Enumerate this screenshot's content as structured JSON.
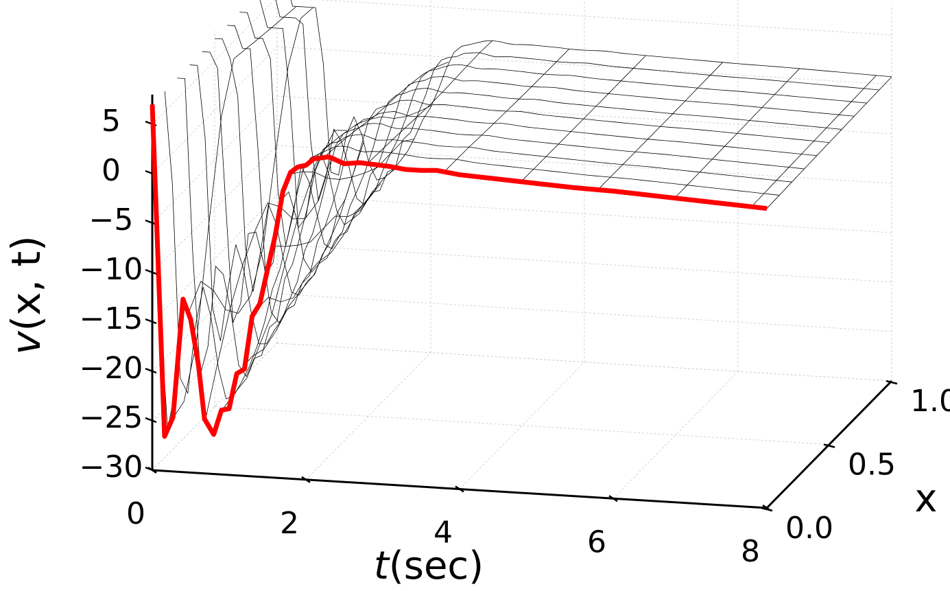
{
  "chart_data": {
    "type": "surface3d",
    "title": "",
    "xlabel_var": "t",
    "xlabel_unit": "(sec)",
    "ylabel": "x",
    "zlabel_func": "v",
    "zlabel_args": "(x, t)",
    "xlim": [
      0,
      8
    ],
    "ylim": [
      0,
      1
    ],
    "zlim": [
      -30,
      8
    ],
    "x_ticks": [
      "0",
      "2",
      "4",
      "6",
      "8"
    ],
    "y_ticks": [
      "0.0",
      "0.5",
      "1.0"
    ],
    "z_ticks": [
      "−30",
      "−25",
      "−20",
      "−15",
      "−10",
      "−5",
      "0",
      "5"
    ],
    "grid": true,
    "surface_color": "#000000",
    "highlight_color": "#ff0000",
    "highlight_series": {
      "x_position": 0.0,
      "t": [
        0.0,
        0.16,
        0.27,
        0.4,
        0.5,
        0.6,
        0.68,
        0.8,
        0.9,
        1.0,
        1.1,
        1.2,
        1.3,
        1.4,
        1.5,
        1.6,
        1.7,
        1.8,
        1.9,
        2.0,
        2.1,
        2.3,
        2.5,
        2.7,
        2.9,
        3.1,
        3.3,
        3.5,
        3.7,
        4.0,
        4.5,
        5.0,
        5.5,
        6.0,
        6.5,
        7.0,
        7.5,
        8.0
      ],
      "v": [
        7.0,
        -26.5,
        -24.5,
        -12.5,
        -14.5,
        -19.0,
        -24.5,
        -26.0,
        -23.5,
        -23.3,
        -19.7,
        -19.2,
        -13.8,
        -12.5,
        -9.0,
        -5.5,
        -1.0,
        1.0,
        1.6,
        1.8,
        2.5,
        2.8,
        2.2,
        2.4,
        2.3,
        2.2,
        2.0,
        2.0,
        2.1,
        1.8,
        1.6,
        1.4,
        1.2,
        1.1,
        0.9,
        0.7,
        0.5,
        0.3
      ]
    }
  }
}
